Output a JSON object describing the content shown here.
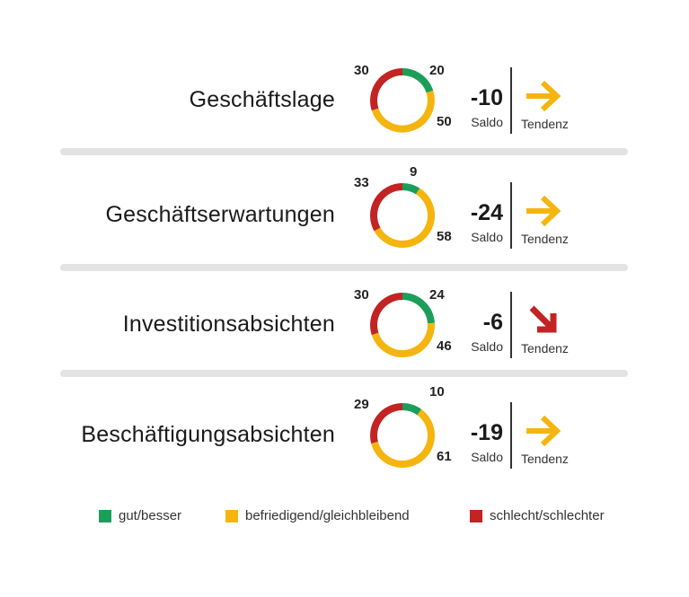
{
  "colors": {
    "gut": "#1a9e5a",
    "befriedigend": "#f5b50f",
    "schlecht": "#c22323",
    "separator": "#e3e3e3"
  },
  "labels": {
    "saldo": "Saldo",
    "tendenz": "Tendenz"
  },
  "chart_data": {
    "type": "donut",
    "rows": [
      {
        "label": "Geschäftslage",
        "gut": 20,
        "befriedigend": 50,
        "schlecht": 30,
        "saldo": "-10",
        "tendenz": "right-arrow",
        "tendenz_color": "#f5b50f"
      },
      {
        "label": "Geschäftserwartungen",
        "gut": 9,
        "befriedigend": 58,
        "schlecht": 33,
        "saldo": "-24",
        "tendenz": "right-arrow",
        "tendenz_color": "#f5b50f"
      },
      {
        "label": "Investitionsabsichten",
        "gut": 24,
        "befriedigend": 46,
        "schlecht": 30,
        "saldo": "-6",
        "tendenz": "down-right-arrow",
        "tendenz_color": "#c22323"
      },
      {
        "label": "Beschäftigungsabsichten",
        "gut": 10,
        "befriedigend": 61,
        "schlecht": 29,
        "saldo": "-19",
        "tendenz": "right-arrow",
        "tendenz_color": "#f5b50f"
      }
    ]
  },
  "legend": [
    {
      "key": "gut",
      "label": "gut/besser"
    },
    {
      "key": "befriedigend",
      "label": "befriedigend/gleichbleibend"
    },
    {
      "key": "schlecht",
      "label": "schlecht/schlechter"
    }
  ]
}
